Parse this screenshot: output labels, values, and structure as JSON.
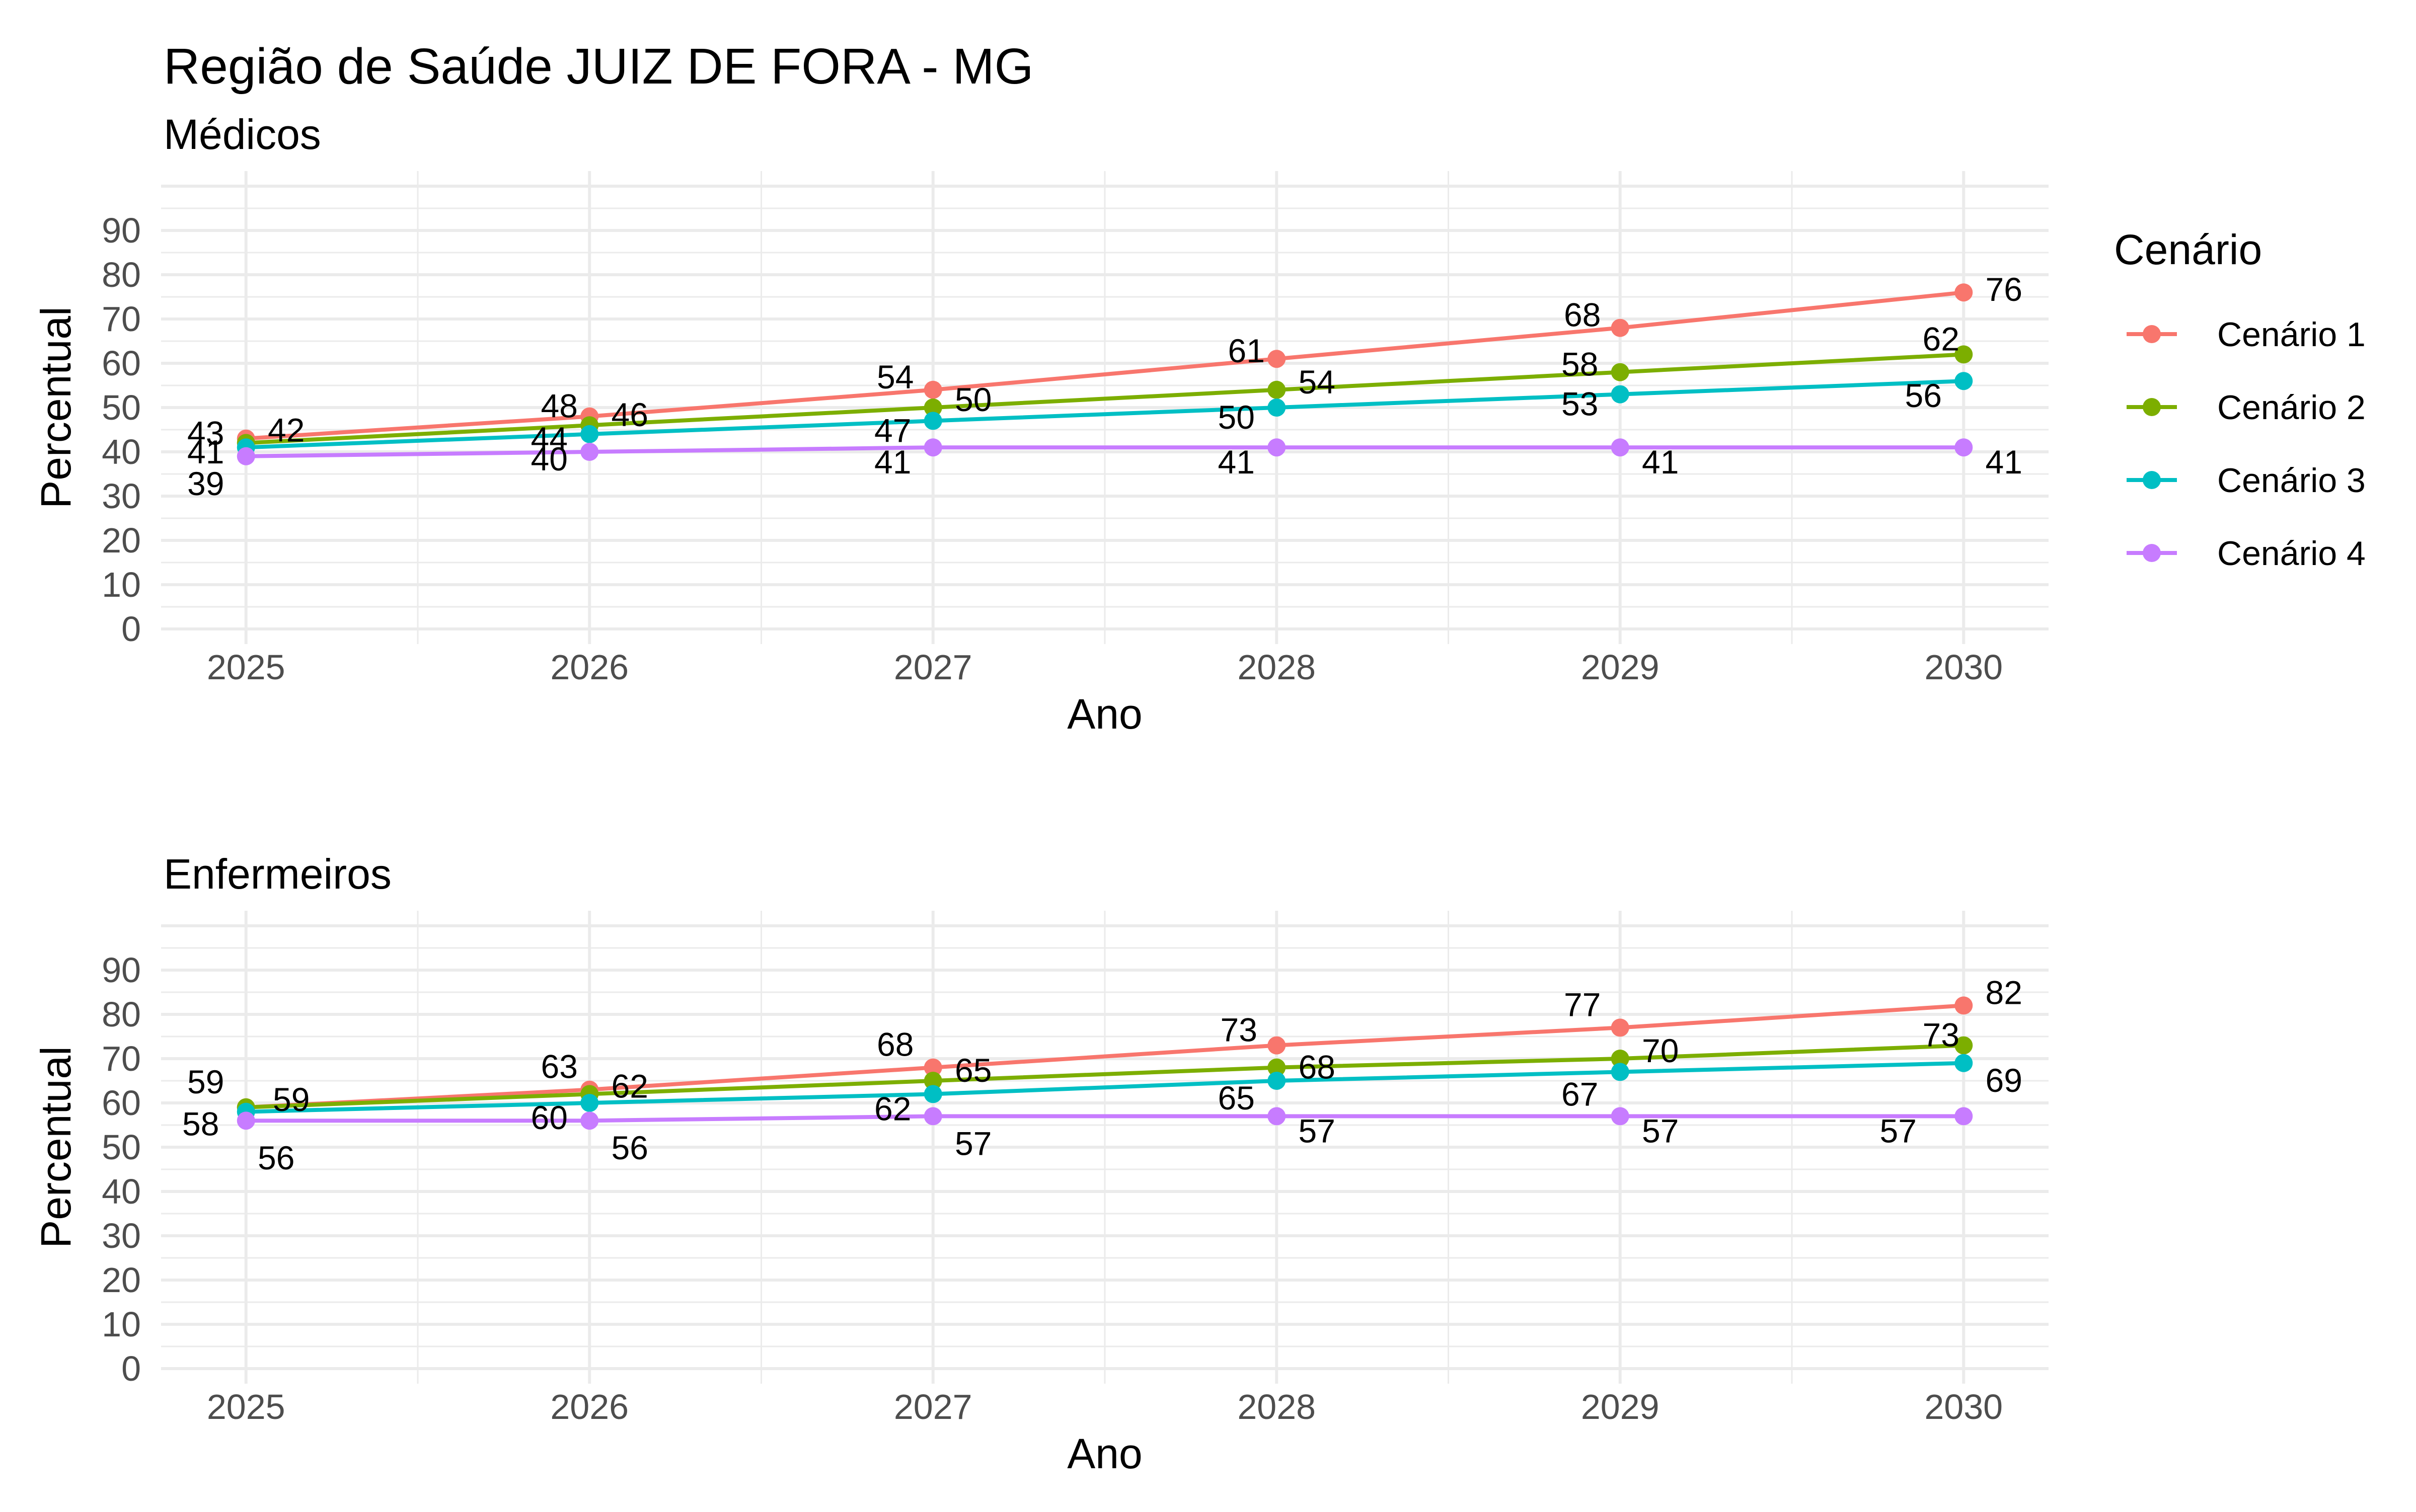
{
  "title": "Região de Saúde JUIZ DE FORA - MG",
  "legend": {
    "title": "Cenário",
    "items": [
      "Cenário 1",
      "Cenário 2",
      "Cenário 3",
      "Cenário 4"
    ],
    "colors": [
      "#F8766D",
      "#7CAE00",
      "#00BFC4",
      "#C77CFF"
    ]
  },
  "chart_data": [
    {
      "type": "line",
      "subtitle": "Médicos",
      "xlabel": "Ano",
      "ylabel": "Percentual",
      "x": [
        "2025",
        "2026",
        "2027",
        "2028",
        "2029",
        "2030"
      ],
      "ylim": [
        0,
        100
      ],
      "yticks": [
        "0",
        "10",
        "20",
        "30",
        "40",
        "50",
        "60",
        "70",
        "80",
        "90"
      ],
      "grid": true,
      "legend_position": "right",
      "series": [
        {
          "name": "Cenário 1",
          "values": [
            43,
            48,
            54,
            61,
            68,
            76
          ]
        },
        {
          "name": "Cenário 2",
          "values": [
            42,
            46,
            50,
            54,
            58,
            62
          ]
        },
        {
          "name": "Cenário 3",
          "values": [
            41,
            44,
            47,
            50,
            53,
            56
          ]
        },
        {
          "name": "Cenário 4",
          "values": [
            39,
            40,
            41,
            41,
            41,
            41
          ]
        }
      ]
    },
    {
      "type": "line",
      "subtitle": "Enfermeiros",
      "xlabel": "Ano",
      "ylabel": "Percentual",
      "x": [
        "2025",
        "2026",
        "2027",
        "2028",
        "2029",
        "2030"
      ],
      "ylim": [
        0,
        100
      ],
      "yticks": [
        "0",
        "10",
        "20",
        "30",
        "40",
        "50",
        "60",
        "70",
        "80",
        "90"
      ],
      "grid": true,
      "legend_position": "right",
      "series": [
        {
          "name": "Cenário 1",
          "values": [
            59,
            63,
            68,
            73,
            77,
            82
          ]
        },
        {
          "name": "Cenário 2",
          "values": [
            59,
            62,
            65,
            68,
            70,
            73
          ]
        },
        {
          "name": "Cenário 3",
          "values": [
            58,
            60,
            62,
            65,
            67,
            69
          ]
        },
        {
          "name": "Cenário 4",
          "values": [
            56,
            56,
            57,
            57,
            57,
            57
          ]
        }
      ]
    }
  ]
}
